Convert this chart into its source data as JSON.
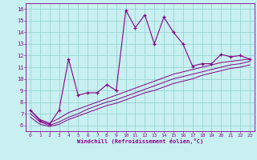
{
  "x": [
    0,
    1,
    2,
    3,
    4,
    5,
    6,
    7,
    8,
    9,
    10,
    11,
    12,
    13,
    14,
    15,
    16,
    17,
    18,
    19,
    20,
    21,
    22,
    23
  ],
  "line_main": [
    7.3,
    6.4,
    6.1,
    7.3,
    11.7,
    8.6,
    8.8,
    8.8,
    9.5,
    9.0,
    15.9,
    14.4,
    15.5,
    13.0,
    15.3,
    14.0,
    13.0,
    11.1,
    11.3,
    11.3,
    12.1,
    11.9,
    12.0,
    11.7
  ],
  "line2": [
    7.3,
    6.5,
    6.2,
    6.6,
    7.1,
    7.4,
    7.7,
    8.0,
    8.3,
    8.6,
    8.9,
    9.2,
    9.5,
    9.8,
    10.1,
    10.4,
    10.6,
    10.8,
    11.0,
    11.2,
    11.4,
    11.5,
    11.6,
    11.7
  ],
  "line3": [
    7.0,
    6.3,
    6.0,
    6.3,
    6.7,
    7.0,
    7.4,
    7.7,
    8.0,
    8.2,
    8.5,
    8.8,
    9.1,
    9.4,
    9.7,
    10.0,
    10.2,
    10.4,
    10.6,
    10.8,
    11.0,
    11.2,
    11.3,
    11.5
  ],
  "line4": [
    6.7,
    6.1,
    5.9,
    6.1,
    6.5,
    6.8,
    7.1,
    7.4,
    7.7,
    7.9,
    8.2,
    8.5,
    8.8,
    9.0,
    9.3,
    9.6,
    9.8,
    10.0,
    10.3,
    10.5,
    10.7,
    10.9,
    11.0,
    11.2
  ],
  "color": "#880088",
  "bg_color": "#c8f0f0",
  "grid_color": "#90cece",
  "xlabel": "Windchill (Refroidissement éolien,°C)",
  "xlim": [
    -0.5,
    23.5
  ],
  "ylim": [
    5.5,
    16.5
  ],
  "yticks": [
    6,
    7,
    8,
    9,
    10,
    11,
    12,
    13,
    14,
    15,
    16
  ],
  "xticks": [
    0,
    1,
    2,
    3,
    4,
    5,
    6,
    7,
    8,
    9,
    10,
    11,
    12,
    13,
    14,
    15,
    16,
    17,
    18,
    19,
    20,
    21,
    22,
    23
  ]
}
